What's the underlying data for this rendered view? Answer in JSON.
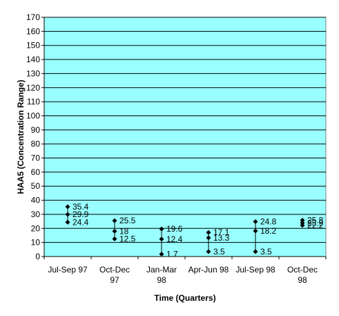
{
  "chart_data": {
    "type": "scatter",
    "subtype": "high-low-range",
    "title": "",
    "xlabel": "Time (Quarters)",
    "ylabel": "HAA5 (Concentration Range)",
    "ylim": [
      0,
      170
    ],
    "ytick_step": 10,
    "grid": "horizontal",
    "legend": "none",
    "categories": [
      [
        "Jul-Sep 97"
      ],
      [
        "Oct-Dec",
        "97"
      ],
      [
        "Jan-Mar",
        "98"
      ],
      [
        "Apr-Jun 98"
      ],
      [
        "Jul-Sep 98"
      ],
      [
        "Oct-Dec",
        "98"
      ]
    ],
    "points": [
      [
        35.4,
        29.9,
        24.4
      ],
      [
        25.5,
        18,
        12.5
      ],
      [
        19.6,
        12.4,
        1.7
      ],
      [
        17.1,
        13.3,
        3.5
      ],
      [
        24.8,
        18.2,
        3.5
      ],
      [
        25.8,
        23.9,
        22.2
      ]
    ],
    "labels": [
      [
        "35.4",
        "29.9",
        "24.4"
      ],
      [
        "25.5",
        "18",
        "12.5"
      ],
      [
        "19.6",
        "12.4",
        "1.7"
      ],
      [
        "17.1",
        "13.3",
        "3.5"
      ],
      [
        "24.8",
        "18.2",
        "3.5"
      ],
      [
        "25.8",
        "23.9",
        "22.2"
      ]
    ],
    "colors": {
      "plot_background": "#99FFFF",
      "grid": "#000000",
      "marker": "#000000"
    }
  }
}
